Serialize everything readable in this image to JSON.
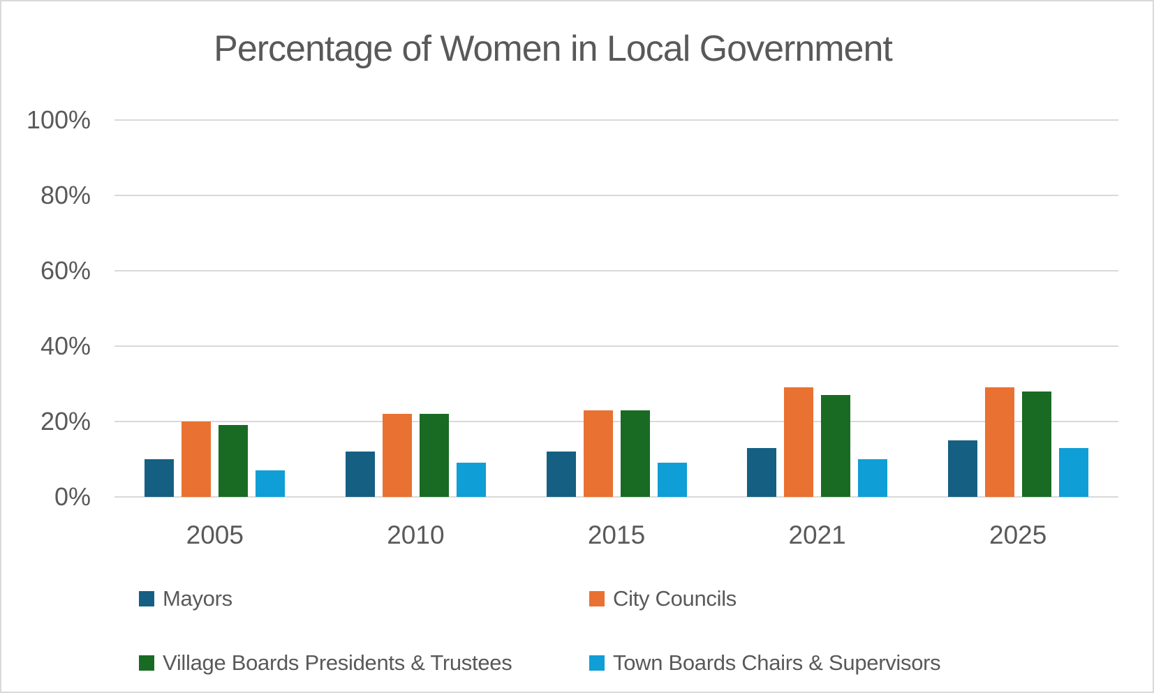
{
  "chart_data": {
    "type": "bar",
    "title": "Percentage of Women in Local Government",
    "categories": [
      "2005",
      "2010",
      "2015",
      "2021",
      "2025"
    ],
    "series": [
      {
        "name": "Mayors",
        "color": "#156082",
        "values": [
          10,
          12,
          12,
          13,
          15
        ]
      },
      {
        "name": "City Councils",
        "color": "#E97132",
        "values": [
          20,
          22,
          23,
          29,
          29
        ]
      },
      {
        "name": "Village Boards Presidents & Trustees",
        "color": "#196B24",
        "values": [
          19,
          22,
          23,
          27,
          28
        ]
      },
      {
        "name": "Town Boards Chairs & Supervisors",
        "color": "#0F9ED5",
        "values": [
          7,
          9,
          9,
          10,
          13
        ]
      }
    ],
    "xlabel": "",
    "ylabel": "",
    "ylim": [
      0,
      100
    ],
    "ytick_labels": [
      "0%",
      "20%",
      "40%",
      "60%",
      "80%",
      "100%"
    ],
    "ytick_values": [
      0,
      20,
      40,
      60,
      80,
      100
    ],
    "grid": true,
    "legend_position": "bottom",
    "legend_rows": 2,
    "legend_cols": 2
  },
  "styles": {
    "text_color": "#595959",
    "grid_color": "#D9D9D9",
    "border_color": "#D9D9D9",
    "background": "#FFFFFF"
  }
}
